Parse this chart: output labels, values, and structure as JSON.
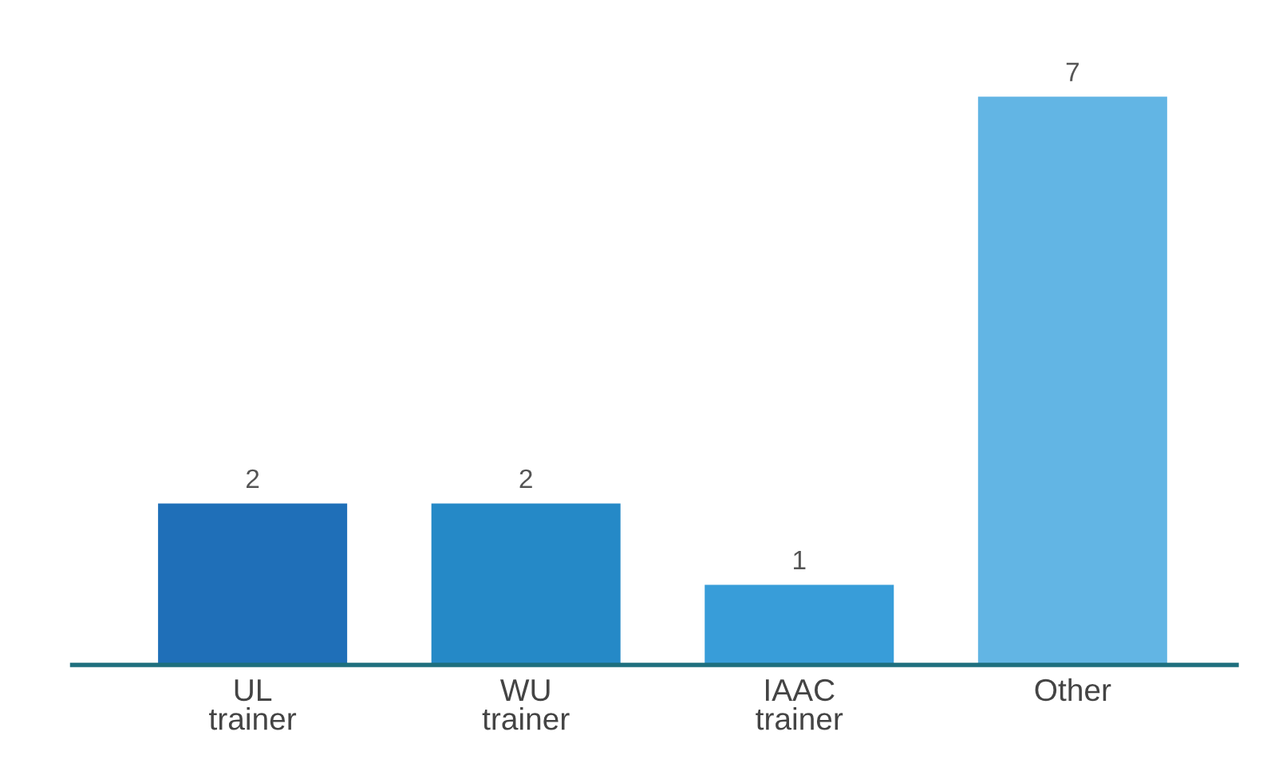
{
  "chart_data": {
    "type": "bar",
    "categories": [
      "UL\ntrainer",
      "WU\ntrainer",
      "IAAC\ntrainer",
      "Other"
    ],
    "values": [
      2,
      2,
      1,
      7
    ],
    "colors": [
      "#1f6fb8",
      "#2589c7",
      "#389dd9",
      "#62b5e4"
    ],
    "data_labels": true,
    "tick_labels": "x",
    "grid": false,
    "legend": false
  }
}
